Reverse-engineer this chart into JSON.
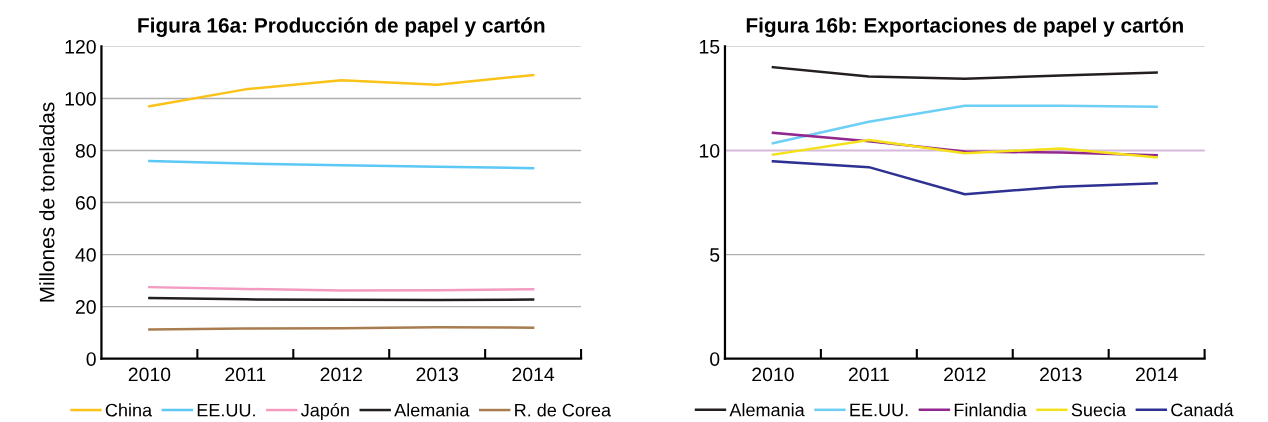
{
  "chart_data": [
    {
      "type": "line",
      "title": "Figura 16a: Producción de papel y cartón",
      "ylabel": "Millones de toneladas",
      "categories": [
        "2010",
        "2011",
        "2012",
        "2013",
        "2014"
      ],
      "series": [
        {
          "name": "China",
          "color": "#fbc21a",
          "values": [
            97,
            103.5,
            107,
            105.3,
            109
          ]
        },
        {
          "name": "EE.UU.",
          "color": "#5bc8f5",
          "values": [
            76,
            75,
            74.3,
            73.8,
            73.2
          ]
        },
        {
          "name": "Japón",
          "color": "#f49ac1",
          "values": [
            27.5,
            26.8,
            26.2,
            26.3,
            26.7
          ]
        },
        {
          "name": "Alemania",
          "color": "#231f20",
          "values": [
            23.3,
            22.8,
            22.7,
            22.6,
            22.7
          ]
        },
        {
          "name": "R. de Corea",
          "color": "#a97c50",
          "values": [
            11.2,
            11.6,
            11.7,
            12.1,
            11.9
          ]
        }
      ],
      "ylim": [
        0,
        120
      ],
      "yticks": [
        0,
        20,
        40,
        60,
        80,
        100,
        120
      ],
      "grid": "y",
      "legend": "bottom",
      "marker": "none",
      "line_style": "solid"
    },
    {
      "type": "line",
      "title": "Figura 16b: Exportaciones de papel y cartón",
      "categories": [
        "2010",
        "2011",
        "2012",
        "2013",
        "2014"
      ],
      "series": [
        {
          "name": "Alemania",
          "color": "#231f20",
          "values": [
            14.0,
            13.55,
            13.45,
            13.6,
            13.75
          ]
        },
        {
          "name": "EE.UU.",
          "color": "#6dcff6",
          "values": [
            10.35,
            11.38,
            12.15,
            12.15,
            12.1
          ]
        },
        {
          "name": "Finlandia",
          "color": "#92278f",
          "values": [
            10.85,
            10.45,
            9.95,
            9.9,
            9.78
          ]
        },
        {
          "name": "Suecia",
          "color": "#f5e11a",
          "values": [
            9.8,
            10.5,
            9.87,
            10.1,
            9.67
          ]
        },
        {
          "name": "Canadá",
          "color": "#2e3192",
          "values": [
            9.48,
            9.2,
            7.9,
            8.26,
            8.43
          ]
        }
      ],
      "ylim": [
        0,
        15
      ],
      "yticks": [
        0,
        5,
        10,
        15
      ],
      "grid": "y",
      "legend": "bottom",
      "marker": "none",
      "line_style": "solid",
      "ref_lines": [
        {
          "axis": "y",
          "value": 10,
          "color": "#dcb6e3"
        }
      ]
    }
  ]
}
